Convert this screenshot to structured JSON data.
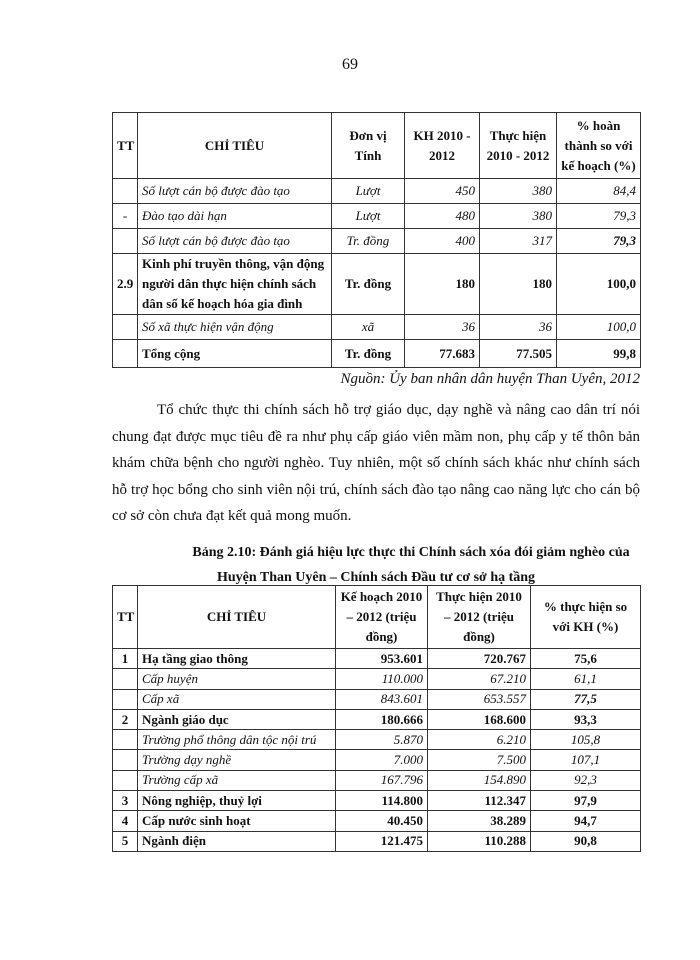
{
  "page_number": "69",
  "table1": {
    "headers": [
      "TT",
      "CHỈ TIÊU",
      "Đơn vị Tính",
      "KH 2010 - 2012",
      "Thực hiện 2010 - 2012",
      "% hoàn thành so với kế hoạch (%)"
    ],
    "rows": [
      {
        "tt": "",
        "name": "Số lượt cán bộ được đào tạo",
        "unit": "Lượt",
        "kh": "450",
        "th": "380",
        "pct": "84,4",
        "style": "i"
      },
      {
        "tt": "-",
        "name": "Đào tạo dài hạn",
        "unit": "Lượt",
        "kh": "480",
        "th": "380",
        "pct": "79,3",
        "style": "i"
      },
      {
        "tt": "",
        "name": "Số lượt cán bộ được đào tạo",
        "unit": "Tr. đồng",
        "kh": "400",
        "th": "317",
        "pct": "79,3",
        "style": "i",
        "pct_bold": true
      },
      {
        "tt": "2.9",
        "name": "Kinh phí truyền thông, vận động người dân thực hiện chính sách dân số kế hoạch hóa gia đình",
        "unit": "Tr. đồng",
        "kh": "180",
        "th": "180",
        "pct": "100,0",
        "style": "b"
      },
      {
        "tt": "",
        "name": "Số xã thực hiện vận động",
        "unit": "xã",
        "kh": "36",
        "th": "36",
        "pct": "100,0",
        "style": "i"
      },
      {
        "tt": "",
        "name": "Tổng cộng",
        "unit": "Tr. đồng",
        "kh": "77.683",
        "th": "77.505",
        "pct": "99,8",
        "style": "b"
      }
    ]
  },
  "source": "Nguồn: Ủy ban nhân dân huyện Than Uyên, 2012",
  "paragraph": "Tổ chức thực thi chính sách hỗ trợ giáo dục, dạy nghề và nâng cao dân trí nói chung đạt được mục tiêu đề ra như phụ cấp giáo viên mầm non, phụ cấp y tế thôn bản khám chữa bệnh cho người nghèo. Tuy nhiên, một số chính sách khác như chính sách hỗ trợ học bổng cho sinh viên nội trú, chính sách đào tạo nâng cao năng lực cho cán bộ cơ sở còn chưa đạt kết quả mong muốn.",
  "caption": {
    "line1": "Bảng 2.10: Đánh giá hiệu lực thực thi Chính sách xóa đói giảm nghèo của",
    "line2": "Huyện Than Uyên – Chính sách Đầu tư cơ sở hạ tầng"
  },
  "table2": {
    "headers": [
      "TT",
      "CHỈ TIÊU",
      "Kế hoạch 2010 – 2012 (triệu đồng)",
      "Thực hiện 2010 – 2012 (triệu đồng)",
      "% thực hiện so với KH (%)"
    ],
    "rows": [
      {
        "tt": "1",
        "name": "Hạ tầng giao thông",
        "kh": "953.601",
        "th": "720.767",
        "pct": "75,6",
        "style": "b"
      },
      {
        "tt": "",
        "name": "Cấp huyện",
        "kh": "110.000",
        "th": "67.210",
        "pct": "61,1",
        "style": "i"
      },
      {
        "tt": "",
        "name": "Cấp xã",
        "kh": "843.601",
        "th": "653.557",
        "pct": "77,5",
        "style": "i",
        "pct_bold": true
      },
      {
        "tt": "2",
        "name": "Ngành giáo dục",
        "kh": "180.666",
        "th": "168.600",
        "pct": "93,3",
        "style": "b"
      },
      {
        "tt": "",
        "name": "Trường phổ thông dân tộc nội trú",
        "kh": "5.870",
        "th": "6.210",
        "pct": "105,8",
        "style": "i"
      },
      {
        "tt": "",
        "name": "Trường dạy nghề",
        "kh": "7.000",
        "th": "7.500",
        "pct": "107,1",
        "style": "i"
      },
      {
        "tt": "",
        "name": "Trường cấp xã",
        "kh": "167.796",
        "th": "154.890",
        "pct": "92,3",
        "style": "i"
      },
      {
        "tt": "3",
        "name": "Nông nghiệp, thuỷ lợi",
        "kh": "114.800",
        "th": "112.347",
        "pct": "97,9",
        "style": "b"
      },
      {
        "tt": "4",
        "name": "Cấp nước sinh hoạt",
        "kh": "40.450",
        "th": "38.289",
        "pct": "94,7",
        "style": "b"
      },
      {
        "tt": "5",
        "name": "Ngành điện",
        "kh": "121.475",
        "th": "110.288",
        "pct": "90,8",
        "style": "b"
      }
    ]
  }
}
